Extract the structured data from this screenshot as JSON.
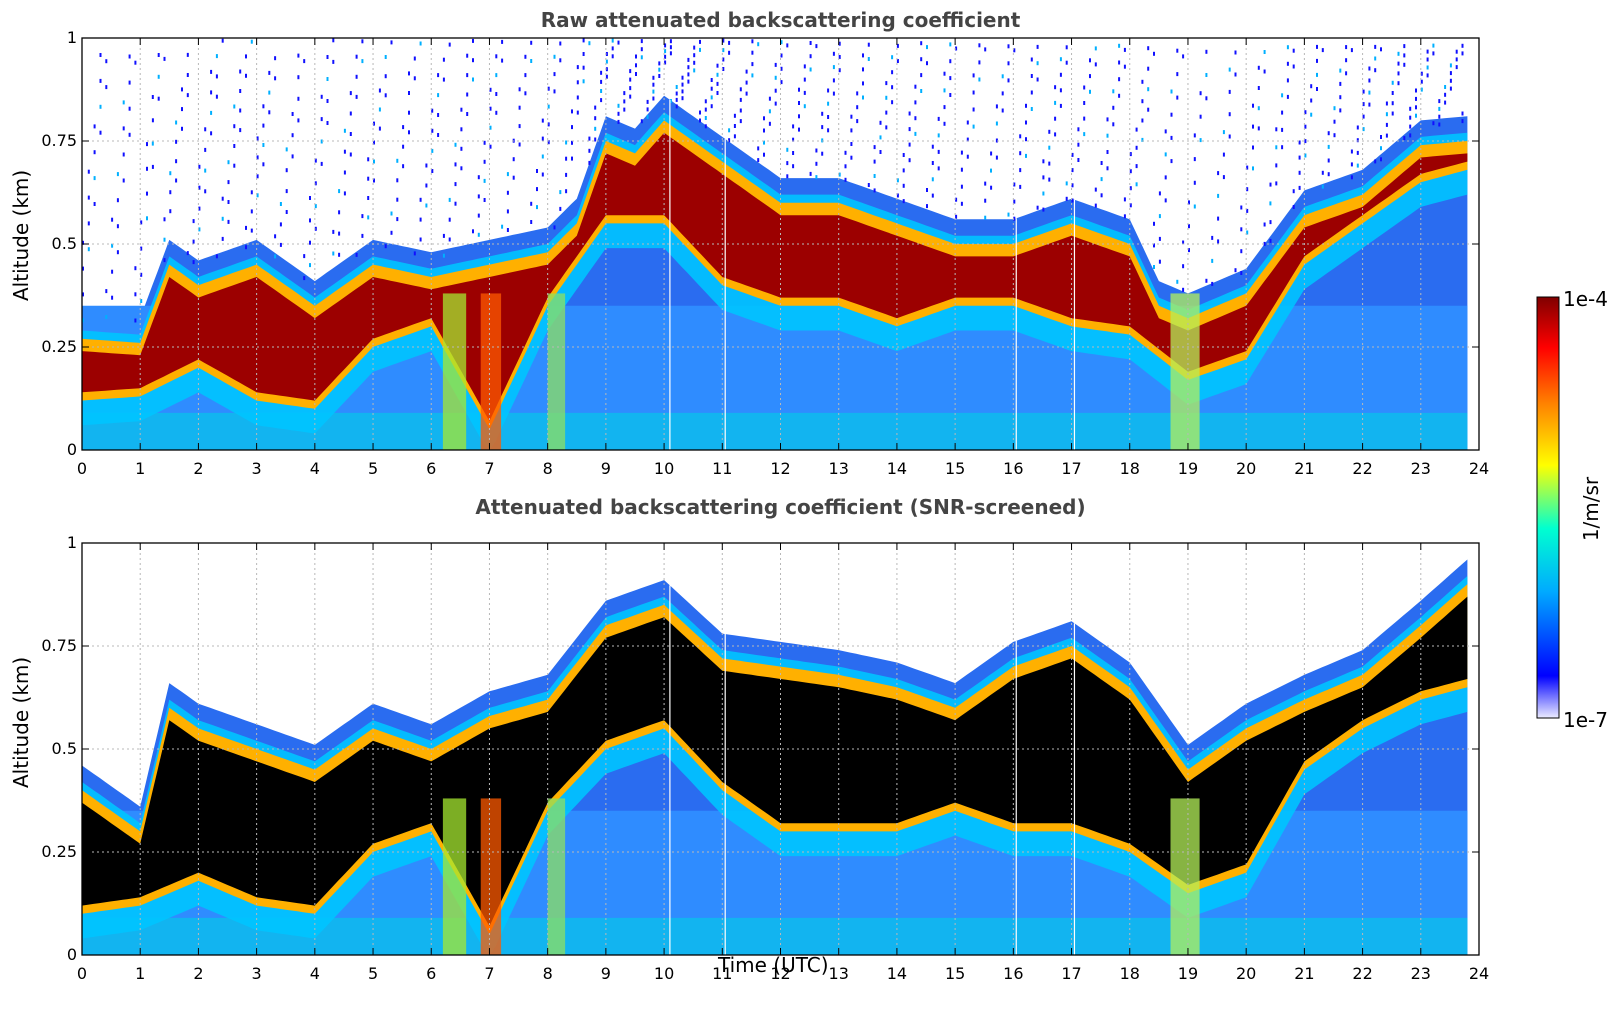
{
  "chart_data": [
    {
      "type": "heatmap",
      "title": "Raw attenuated backscattering coefficient",
      "xlabel": "",
      "ylabel": "Altitude (km)",
      "xlim": [
        0,
        24
      ],
      "ylim": [
        0,
        1
      ],
      "x_ticks": [
        "0",
        "1",
        "2",
        "3",
        "4",
        "5",
        "6",
        "7",
        "8",
        "9",
        "10",
        "11",
        "12",
        "13",
        "14",
        "15",
        "16",
        "17",
        "18",
        "19",
        "20",
        "21",
        "22",
        "23",
        "24"
      ],
      "y_ticks": [
        "0",
        "0.25",
        "0.5",
        "0.75",
        "1"
      ],
      "grid": true,
      "layer_top_km": [
        {
          "x": 0,
          "y": 0.27
        },
        {
          "x": 1,
          "y": 0.26
        },
        {
          "x": 1.5,
          "y": 0.45
        },
        {
          "x": 2,
          "y": 0.4
        },
        {
          "x": 3,
          "y": 0.45
        },
        {
          "x": 4,
          "y": 0.35
        },
        {
          "x": 4.5,
          "y": 0.4
        },
        {
          "x": 5,
          "y": 0.45
        },
        {
          "x": 6,
          "y": 0.42
        },
        {
          "x": 7,
          "y": 0.45
        },
        {
          "x": 8,
          "y": 0.48
        },
        {
          "x": 8.5,
          "y": 0.55
        },
        {
          "x": 9,
          "y": 0.75
        },
        {
          "x": 9.5,
          "y": 0.72
        },
        {
          "x": 10,
          "y": 0.8
        },
        {
          "x": 11,
          "y": 0.7
        },
        {
          "x": 12,
          "y": 0.6
        },
        {
          "x": 13,
          "y": 0.6
        },
        {
          "x": 14,
          "y": 0.55
        },
        {
          "x": 15,
          "y": 0.5
        },
        {
          "x": 16,
          "y": 0.5
        },
        {
          "x": 17,
          "y": 0.55
        },
        {
          "x": 18,
          "y": 0.5
        },
        {
          "x": 18.5,
          "y": 0.35
        },
        {
          "x": 19,
          "y": 0.32
        },
        {
          "x": 20,
          "y": 0.38
        },
        {
          "x": 21,
          "y": 0.57
        },
        {
          "x": 22,
          "y": 0.62
        },
        {
          "x": 23,
          "y": 0.74
        },
        {
          "x": 23.8,
          "y": 0.75
        }
      ],
      "cloud_base_km": [
        {
          "x": 0,
          "y": 0.12
        },
        {
          "x": 1,
          "y": 0.13
        },
        {
          "x": 2,
          "y": 0.2
        },
        {
          "x": 3,
          "y": 0.12
        },
        {
          "x": 4,
          "y": 0.1
        },
        {
          "x": 5,
          "y": 0.25
        },
        {
          "x": 6,
          "y": 0.3
        },
        {
          "x": 7,
          "y": 0.05
        },
        {
          "x": 8,
          "y": 0.35
        },
        {
          "x": 9,
          "y": 0.55
        },
        {
          "x": 10,
          "y": 0.55
        },
        {
          "x": 11,
          "y": 0.4
        },
        {
          "x": 12,
          "y": 0.35
        },
        {
          "x": 13,
          "y": 0.35
        },
        {
          "x": 14,
          "y": 0.3
        },
        {
          "x": 15,
          "y": 0.35
        },
        {
          "x": 16,
          "y": 0.35
        },
        {
          "x": 17,
          "y": 0.3
        },
        {
          "x": 18,
          "y": 0.28
        },
        {
          "x": 19,
          "y": 0.17
        },
        {
          "x": 20,
          "y": 0.22
        },
        {
          "x": 21,
          "y": 0.45
        },
        {
          "x": 22,
          "y": 0.55
        },
        {
          "x": 23,
          "y": 0.65
        },
        {
          "x": 23.8,
          "y": 0.68
        }
      ]
    },
    {
      "type": "heatmap",
      "title": "Attenuated backscattering coefficient (SNR-screened)",
      "xlabel": "Time (UTC)",
      "ylabel": "Altitude (km)",
      "xlim": [
        0,
        24
      ],
      "ylim": [
        0,
        1
      ],
      "x_ticks": [
        "0",
        "1",
        "2",
        "3",
        "4",
        "5",
        "6",
        "7",
        "8",
        "9",
        "10",
        "11",
        "12",
        "13",
        "14",
        "15",
        "16",
        "17",
        "18",
        "19",
        "20",
        "21",
        "22",
        "23",
        "24"
      ],
      "y_ticks": [
        "0",
        "0.25",
        "0.5",
        "0.75",
        "1"
      ],
      "grid": true,
      "layer_top_km": [
        {
          "x": 0,
          "y": 0.4
        },
        {
          "x": 1,
          "y": 0.3
        },
        {
          "x": 1.5,
          "y": 0.6
        },
        {
          "x": 2,
          "y": 0.55
        },
        {
          "x": 3,
          "y": 0.5
        },
        {
          "x": 4,
          "y": 0.45
        },
        {
          "x": 5,
          "y": 0.55
        },
        {
          "x": 6,
          "y": 0.5
        },
        {
          "x": 7,
          "y": 0.58
        },
        {
          "x": 8,
          "y": 0.62
        },
        {
          "x": 9,
          "y": 0.8
        },
        {
          "x": 10,
          "y": 0.85
        },
        {
          "x": 11,
          "y": 0.72
        },
        {
          "x": 12,
          "y": 0.7
        },
        {
          "x": 13,
          "y": 0.68
        },
        {
          "x": 14,
          "y": 0.65
        },
        {
          "x": 15,
          "y": 0.6
        },
        {
          "x": 16,
          "y": 0.7
        },
        {
          "x": 17,
          "y": 0.75
        },
        {
          "x": 18,
          "y": 0.65
        },
        {
          "x": 19,
          "y": 0.45
        },
        {
          "x": 20,
          "y": 0.55
        },
        {
          "x": 21,
          "y": 0.62
        },
        {
          "x": 22,
          "y": 0.68
        },
        {
          "x": 23,
          "y": 0.8
        },
        {
          "x": 23.8,
          "y": 0.9
        }
      ],
      "cloud_base_km": [
        {
          "x": 0,
          "y": 0.1
        },
        {
          "x": 1,
          "y": 0.12
        },
        {
          "x": 2,
          "y": 0.18
        },
        {
          "x": 3,
          "y": 0.12
        },
        {
          "x": 4,
          "y": 0.1
        },
        {
          "x": 5,
          "y": 0.25
        },
        {
          "x": 6,
          "y": 0.3
        },
        {
          "x": 7,
          "y": 0.05
        },
        {
          "x": 8,
          "y": 0.35
        },
        {
          "x": 9,
          "y": 0.5
        },
        {
          "x": 10,
          "y": 0.55
        },
        {
          "x": 11,
          "y": 0.4
        },
        {
          "x": 12,
          "y": 0.3
        },
        {
          "x": 13,
          "y": 0.3
        },
        {
          "x": 14,
          "y": 0.3
        },
        {
          "x": 15,
          "y": 0.35
        },
        {
          "x": 16,
          "y": 0.3
        },
        {
          "x": 17,
          "y": 0.3
        },
        {
          "x": 18,
          "y": 0.25
        },
        {
          "x": 19,
          "y": 0.15
        },
        {
          "x": 20,
          "y": 0.2
        },
        {
          "x": 21,
          "y": 0.45
        },
        {
          "x": 22,
          "y": 0.55
        },
        {
          "x": 23,
          "y": 0.62
        },
        {
          "x": 23.8,
          "y": 0.65
        }
      ]
    }
  ],
  "colorbar": {
    "min_label": "1e-7",
    "max_label": "1e-4",
    "unit": "1/m/sr",
    "scale": "log",
    "colors": [
      "#ebebff",
      "#0000ff",
      "#00aaff",
      "#00ffd0",
      "#ffff00",
      "#ff7f00",
      "#ff0000",
      "#800000"
    ]
  }
}
